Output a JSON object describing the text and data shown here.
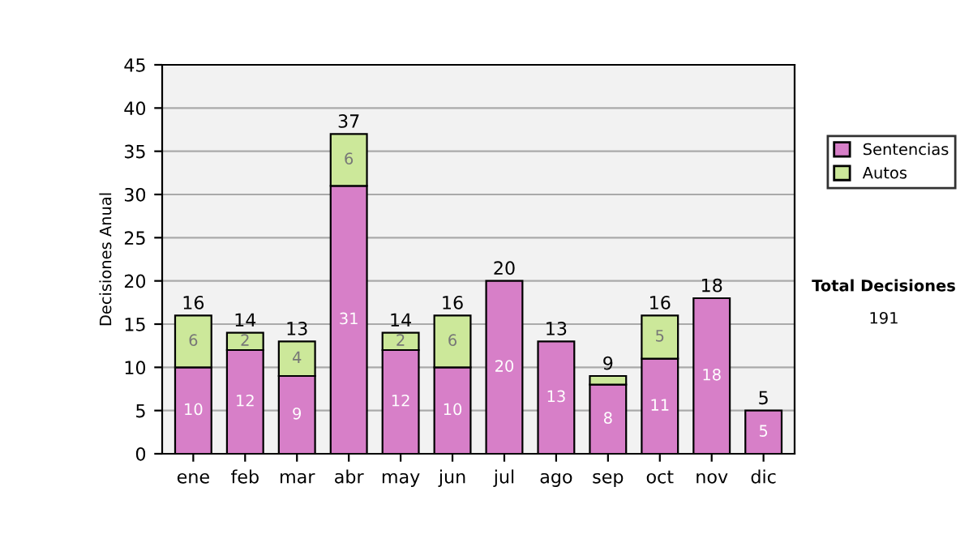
{
  "chart_data": {
    "type": "bar",
    "stacked": true,
    "ylabel": "Decisiones Anual",
    "categories": [
      "ene",
      "feb",
      "mar",
      "abr",
      "may",
      "jun",
      "jul",
      "ago",
      "sep",
      "oct",
      "nov",
      "dic"
    ],
    "series": [
      {
        "name": "Sentencias",
        "color": "#d77fc8",
        "values": [
          10,
          12,
          9,
          31,
          12,
          10,
          20,
          13,
          8,
          11,
          18,
          5
        ],
        "value_labels": [
          "10",
          "12",
          "9",
          "31",
          "12",
          "10",
          "20",
          "13",
          "8",
          "11",
          "18",
          "5"
        ]
      },
      {
        "name": "Autos",
        "color": "#cce89a",
        "values": [
          6,
          2,
          4,
          6,
          2,
          6,
          null,
          null,
          1,
          5,
          null,
          null
        ],
        "value_labels": [
          "6",
          "2",
          "4",
          "6",
          "2",
          "6",
          null,
          null,
          null,
          "5",
          null,
          null
        ]
      }
    ],
    "totals": [
      "16",
      "14",
      "13",
      "37",
      "14",
      "16",
      "20",
      "13",
      "9",
      "16",
      "18",
      "5"
    ],
    "ylim": [
      0,
      45
    ],
    "yticks": [
      0,
      5,
      10,
      15,
      20,
      25,
      30,
      35,
      40,
      45
    ],
    "grid": "y",
    "legend": "right",
    "annotations": [
      "Total Decisiones",
      "191"
    ]
  }
}
